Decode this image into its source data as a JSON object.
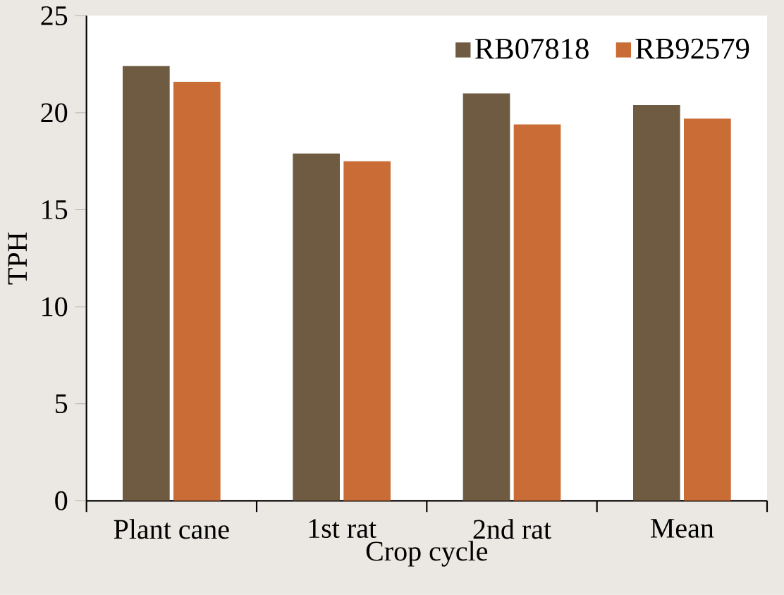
{
  "chart_data": {
    "type": "bar",
    "xlabel": "Crop cycle",
    "ylabel": "TPH",
    "categories": [
      "Plant cane",
      "1st rat",
      "2nd rat",
      "Mean"
    ],
    "series": [
      {
        "name": "RB07818",
        "color": "#6f5b42",
        "values": [
          22.4,
          17.9,
          21.0,
          20.4
        ]
      },
      {
        "name": "RB92579",
        "color": "#c96c35",
        "values": [
          21.6,
          17.5,
          19.4,
          19.7
        ]
      }
    ],
    "ylim": [
      0,
      25
    ],
    "yticks": [
      0,
      5,
      10,
      15,
      20,
      25
    ],
    "grid": false,
    "legend": "top right"
  }
}
